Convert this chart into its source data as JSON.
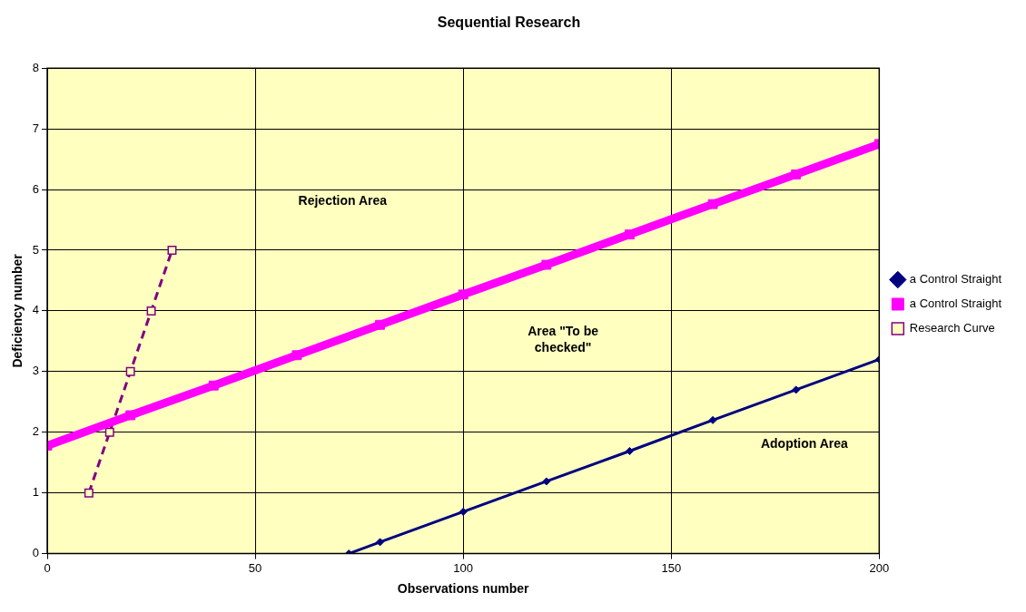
{
  "chart_data": {
    "type": "line",
    "title": "Sequential Research",
    "xlabel": "Observations number",
    "ylabel": "Deficiency number",
    "xlim": [
      0,
      200
    ],
    "xticks": [
      0,
      50,
      100,
      150,
      200
    ],
    "ylim": [
      0,
      8
    ],
    "yticks": [
      0,
      1,
      2,
      3,
      4,
      5,
      6,
      7,
      8
    ],
    "grid": true,
    "legend": "right",
    "series": [
      {
        "name": "a Control Straight",
        "color": "#000080",
        "marker": "diamond",
        "line_style": "solid",
        "x": [
          72.5,
          80,
          100,
          120,
          140,
          160,
          180,
          200
        ],
        "values": [
          0,
          0.19,
          0.69,
          1.19,
          1.69,
          2.2,
          2.7,
          3.2
        ]
      },
      {
        "name": "a Control Straight",
        "color": "#ff00ff",
        "marker": "square",
        "line_style": "solid",
        "x": [
          0,
          20,
          40,
          60,
          80,
          100,
          120,
          140,
          160,
          180,
          200
        ],
        "values": [
          1.78,
          2.28,
          2.77,
          3.27,
          3.77,
          4.27,
          4.76,
          5.26,
          5.76,
          6.25,
          6.75
        ]
      },
      {
        "name": "Research Curve",
        "color": "#800080",
        "marker": "square",
        "line_style": "dashed",
        "x": [
          10,
          15,
          20,
          25,
          30
        ],
        "values": [
          1,
          2,
          3,
          4,
          5
        ]
      }
    ],
    "annotations": [
      "Rejection Area",
      "Area \"To be checked\"",
      "Adoption Area"
    ]
  }
}
